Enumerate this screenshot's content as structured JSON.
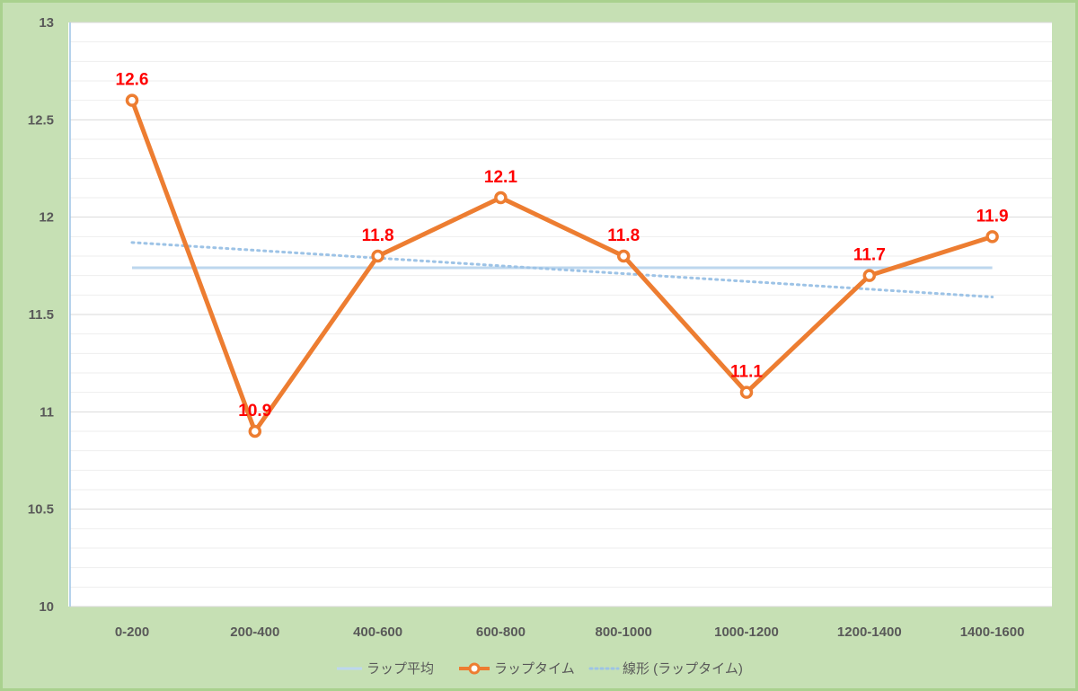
{
  "chart_data": {
    "type": "line",
    "categories": [
      "0-200",
      "200-400",
      "400-600",
      "600-800",
      "800-1000",
      "1000-1200",
      "1200-1400",
      "1400-1600"
    ],
    "series": [
      {
        "name": "ラップ平均",
        "values": [
          11.74,
          11.74,
          11.74,
          11.74,
          11.74,
          11.74,
          11.74,
          11.74
        ],
        "color": "#bdd7ee",
        "style": "solid"
      },
      {
        "name": "ラップタイム",
        "values": [
          12.6,
          10.9,
          11.8,
          12.1,
          11.8,
          11.1,
          11.7,
          11.9
        ],
        "color": "#ed7d31",
        "style": "solid-markers",
        "data_labels": [
          "12.6",
          "10.9",
          "11.8",
          "12.1",
          "11.8",
          "11.1",
          "11.7",
          "11.9"
        ]
      },
      {
        "name": "線形 (ラップタイム)",
        "values": [
          11.87,
          11.83,
          11.79,
          11.75,
          11.71,
          11.67,
          11.63,
          11.59
        ],
        "color": "#9dc3e6",
        "style": "dotted"
      }
    ],
    "ylim": [
      10,
      13
    ],
    "yticks": [
      "10",
      "10.5",
      "11",
      "11.5",
      "12",
      "12.5",
      "13"
    ],
    "ytick_values": [
      10,
      10.5,
      11,
      11.5,
      12,
      12.5,
      13
    ],
    "grid": true,
    "legend_position": "bottom",
    "data_label_color": "#ff0000",
    "background_color": "#c6e0b4",
    "plot_background": "#ffffff"
  }
}
